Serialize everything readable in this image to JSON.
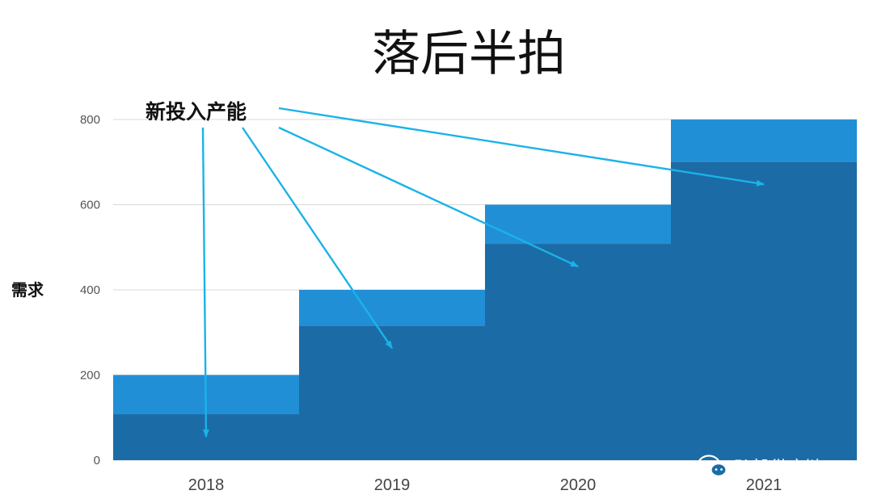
{
  "title": "落后半拍",
  "annotation": "新投入产能",
  "watermark": {
    "text": "弘毅供应链",
    "icon": "wechat-icon"
  },
  "colors": {
    "base": "#1b6ca6",
    "new": "#218fd6",
    "arrow": "#1ab3e8",
    "grid": "#d9d9d9"
  },
  "chart_data": {
    "type": "bar",
    "stacked": true,
    "categories": [
      "2018",
      "2019",
      "2020",
      "2021"
    ],
    "series": [
      {
        "values": [
          108,
          316,
          508,
          701
        ]
      },
      {
        "values": [
          92,
          84,
          92,
          99
        ]
      }
    ],
    "totals": [
      200,
      400,
      600,
      800
    ],
    "ylabel": "需求",
    "ylim": [
      0,
      800
    ],
    "yticks": [
      0,
      200,
      400,
      600,
      800
    ],
    "grid": true,
    "legend": "none"
  }
}
